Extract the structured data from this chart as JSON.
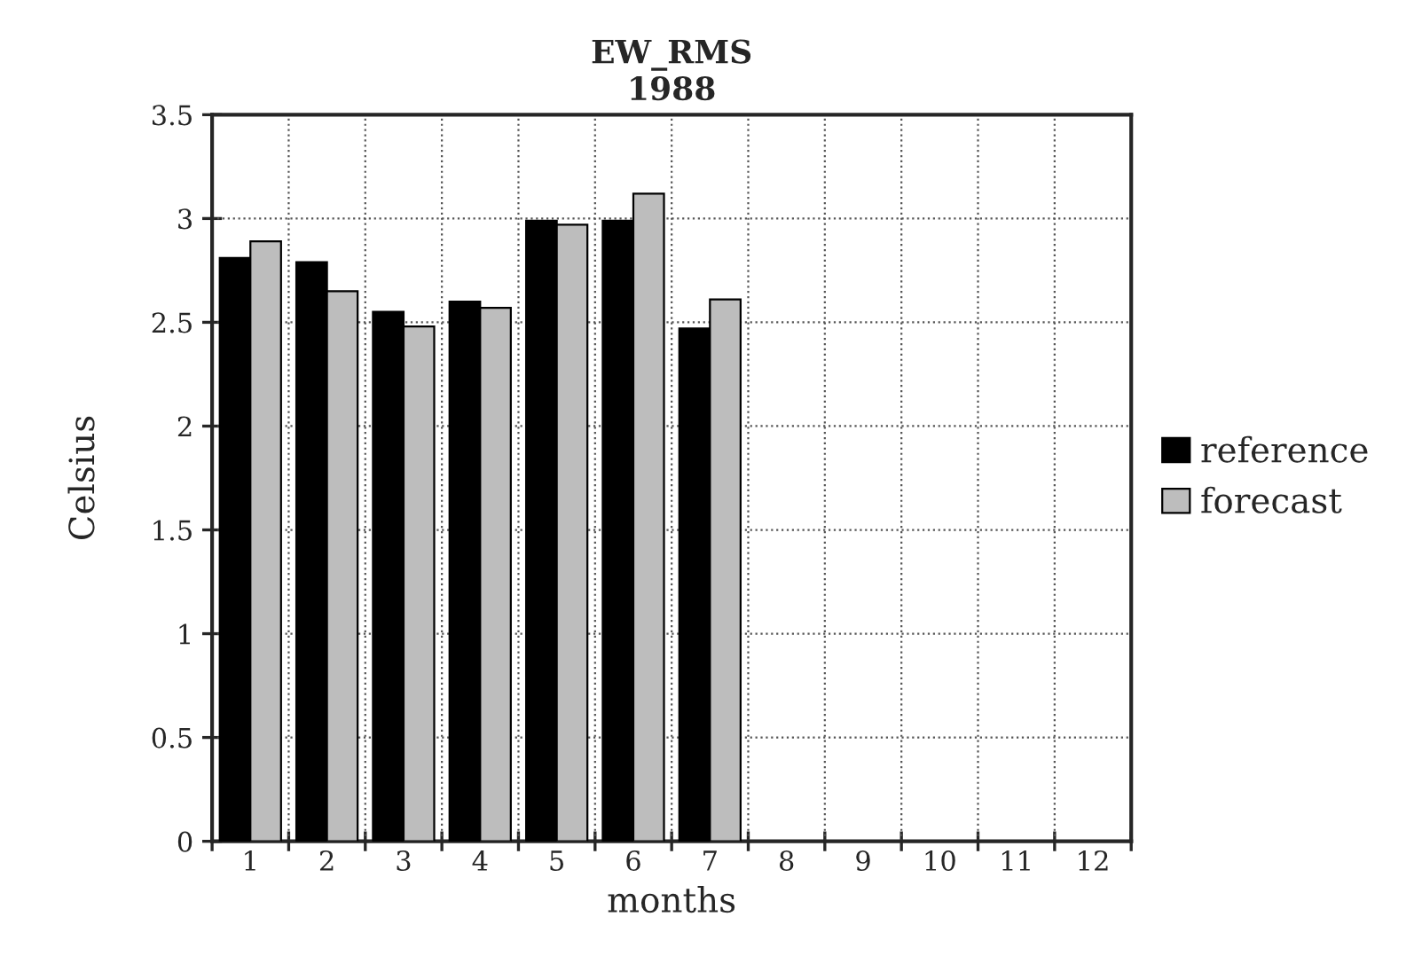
{
  "chart_data": {
    "type": "bar",
    "title": "EW_RMS\n1988",
    "xlabel": "months",
    "ylabel": "Celsius",
    "categories": [
      "1",
      "2",
      "3",
      "4",
      "5",
      "6",
      "7",
      "8",
      "9",
      "10",
      "11",
      "12"
    ],
    "series": [
      {
        "name": "reference",
        "color": "#000000",
        "values": [
          2.81,
          2.79,
          2.55,
          2.6,
          2.99,
          2.99,
          2.47,
          null,
          null,
          null,
          null,
          null
        ]
      },
      {
        "name": "forecast",
        "color": "#bdbdbd",
        "values": [
          2.89,
          2.65,
          2.48,
          2.57,
          2.97,
          3.12,
          2.61,
          null,
          null,
          null,
          null,
          null
        ]
      }
    ],
    "ylim": [
      0,
      3.5
    ],
    "yticks": [
      0,
      0.5,
      1,
      1.5,
      2,
      2.5,
      3,
      3.5
    ],
    "grid": true,
    "legend": "right"
  }
}
